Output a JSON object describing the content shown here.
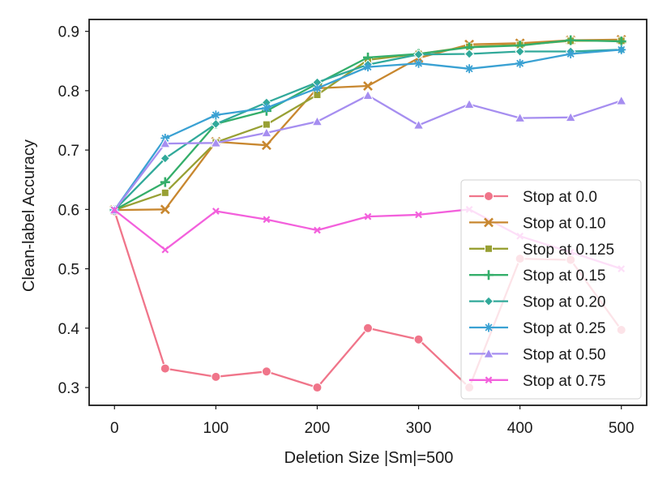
{
  "chart_data": {
    "type": "line",
    "title": "",
    "xlabel": "Deletion Size |Sm|=500",
    "ylabel": "Clean-label Accuracy",
    "xlim": [
      -25,
      525
    ],
    "ylim": [
      0.27,
      0.92
    ],
    "xticks": [
      0,
      100,
      200,
      300,
      400,
      500
    ],
    "yticks": [
      0.3,
      0.4,
      0.5,
      0.6,
      0.7,
      0.8,
      0.9
    ],
    "ytick_labels": [
      "0.3",
      "0.4",
      "0.5",
      "0.6",
      "0.7",
      "0.8",
      "0.9"
    ],
    "grid": false,
    "legend_position": "lower right",
    "x": [
      0,
      50,
      100,
      150,
      200,
      250,
      300,
      350,
      400,
      450,
      500
    ],
    "series": [
      {
        "name": "Stop at 0.0",
        "color": "#f0758a",
        "marker": "circle",
        "values": [
          0.597,
          0.332,
          0.318,
          0.327,
          0.3,
          0.4,
          0.381,
          0.3,
          0.517,
          0.515,
          0.397
        ]
      },
      {
        "name": "Stop at 0.10",
        "color": "#c8872f",
        "marker": "x",
        "values": [
          0.599,
          0.6,
          0.714,
          0.708,
          0.804,
          0.808,
          0.855,
          0.878,
          0.88,
          0.885,
          0.886
        ]
      },
      {
        "name": "Stop at 0.125",
        "color": "#98a034",
        "marker": "square",
        "values": [
          0.599,
          0.628,
          0.713,
          0.743,
          0.793,
          0.852,
          0.862,
          0.874,
          0.877,
          0.884,
          0.884
        ]
      },
      {
        "name": "Stop at 0.15",
        "color": "#34ae6a",
        "marker": "plus",
        "values": [
          0.599,
          0.646,
          0.744,
          0.766,
          0.812,
          0.856,
          0.862,
          0.873,
          0.876,
          0.885,
          0.883
        ]
      },
      {
        "name": "Stop at 0.20",
        "color": "#31a99a",
        "marker": "diamond",
        "values": [
          0.599,
          0.686,
          0.744,
          0.78,
          0.814,
          0.844,
          0.861,
          0.862,
          0.866,
          0.866,
          0.869
        ]
      },
      {
        "name": "Stop at 0.25",
        "color": "#3aa1d3",
        "marker": "star",
        "values": [
          0.599,
          0.72,
          0.759,
          0.771,
          0.804,
          0.84,
          0.846,
          0.837,
          0.846,
          0.862,
          0.869
        ]
      },
      {
        "name": "Stop at 0.50",
        "color": "#a68ef0",
        "marker": "triangle",
        "values": [
          0.599,
          0.711,
          0.712,
          0.729,
          0.748,
          0.792,
          0.742,
          0.777,
          0.754,
          0.755,
          0.783
        ]
      },
      {
        "name": "Stop at 0.75",
        "color": "#f360dc",
        "marker": "x-small",
        "values": [
          0.599,
          0.532,
          0.597,
          0.583,
          0.565,
          0.588,
          0.591,
          0.6,
          0.555,
          0.528,
          0.5
        ]
      }
    ]
  }
}
